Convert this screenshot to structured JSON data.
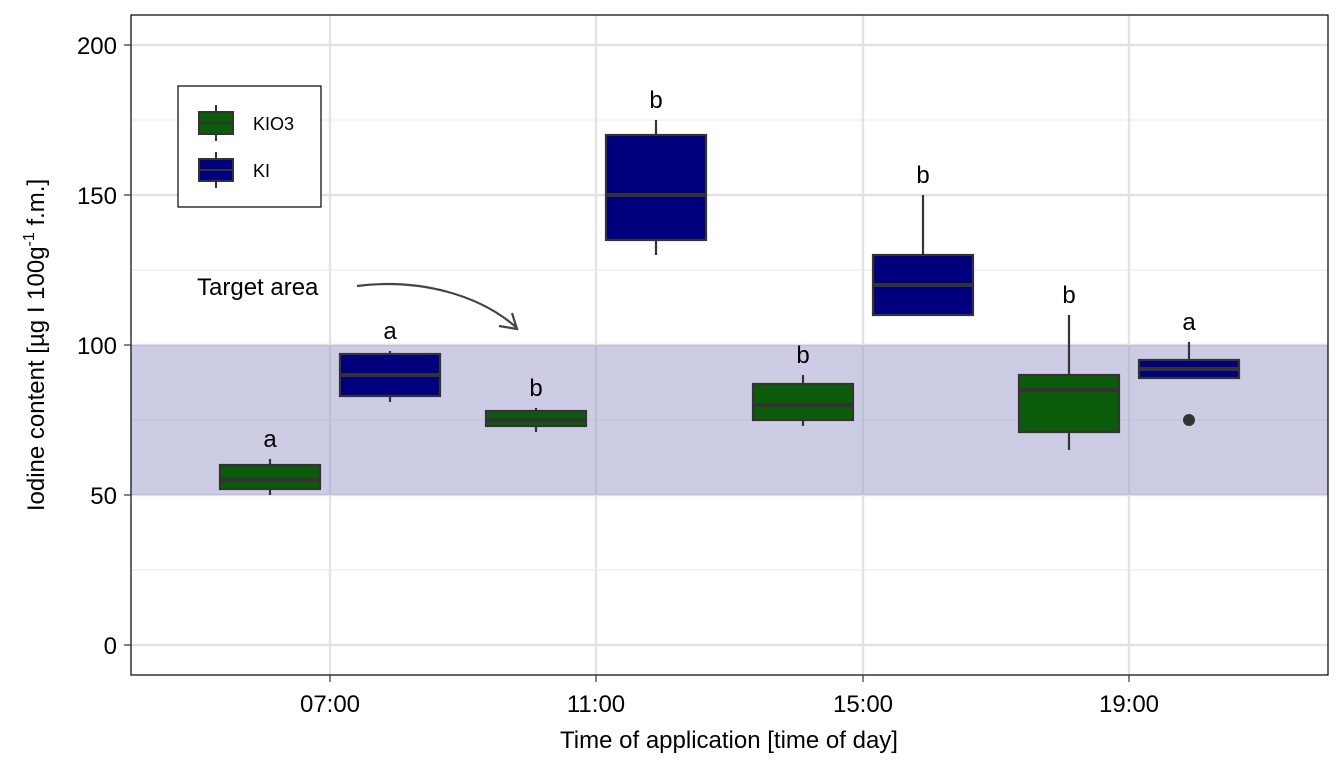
{
  "chart_data": {
    "type": "boxplot",
    "title": "",
    "xlabel": "Time of application [time of day]",
    "ylabel_parts": [
      "Iodine content [µg I 100g",
      "-1",
      " f.m.]"
    ],
    "ylim": [
      -10,
      210
    ],
    "y_ticks": [
      0,
      50,
      100,
      150,
      200
    ],
    "grid": true,
    "categories": [
      "07:00",
      "11:00",
      "15:00",
      "19:00"
    ],
    "target_band": {
      "ymin": 50,
      "ymax": 100,
      "color": "#9999cc"
    },
    "annotation": {
      "text": "Target area"
    },
    "legend": {
      "position": "top-left",
      "entries": [
        "KIO3",
        "KI"
      ]
    },
    "series": [
      {
        "name": "KIO3",
        "color": "#0a5c0a",
        "boxes": [
          {
            "category": "07:00",
            "min": 50,
            "q1": 52,
            "median": 55,
            "q3": 60,
            "max": 62,
            "label": "a",
            "outliers": []
          },
          {
            "category": "11:00",
            "min": 71,
            "q1": 73,
            "median": 75,
            "q3": 78,
            "max": 79,
            "label": "b",
            "outliers": []
          },
          {
            "category": "15:00",
            "min": 73,
            "q1": 75,
            "median": 80,
            "q3": 87,
            "max": 90,
            "label": "b",
            "outliers": []
          },
          {
            "category": "19:00",
            "min": 65,
            "q1": 71,
            "median": 85,
            "q3": 90,
            "max": 110,
            "label": "b",
            "outliers": []
          }
        ]
      },
      {
        "name": "KI",
        "color": "#00007f",
        "boxes": [
          {
            "category": "07:00",
            "min": 81,
            "q1": 83,
            "median": 90,
            "q3": 97,
            "max": 98,
            "label": "a",
            "outliers": []
          },
          {
            "category": "11:00",
            "min": 130,
            "q1": 135,
            "median": 150,
            "q3": 170,
            "max": 175,
            "label": "b",
            "outliers": []
          },
          {
            "category": "15:00",
            "min": 110,
            "q1": 110,
            "median": 120,
            "q3": 130,
            "max": 150,
            "label": "b",
            "outliers": []
          },
          {
            "category": "19:00",
            "min": 89,
            "q1": 89,
            "median": 92,
            "q3": 95,
            "max": 101,
            "label": "a",
            "outliers": [
              75
            ]
          }
        ]
      }
    ]
  }
}
